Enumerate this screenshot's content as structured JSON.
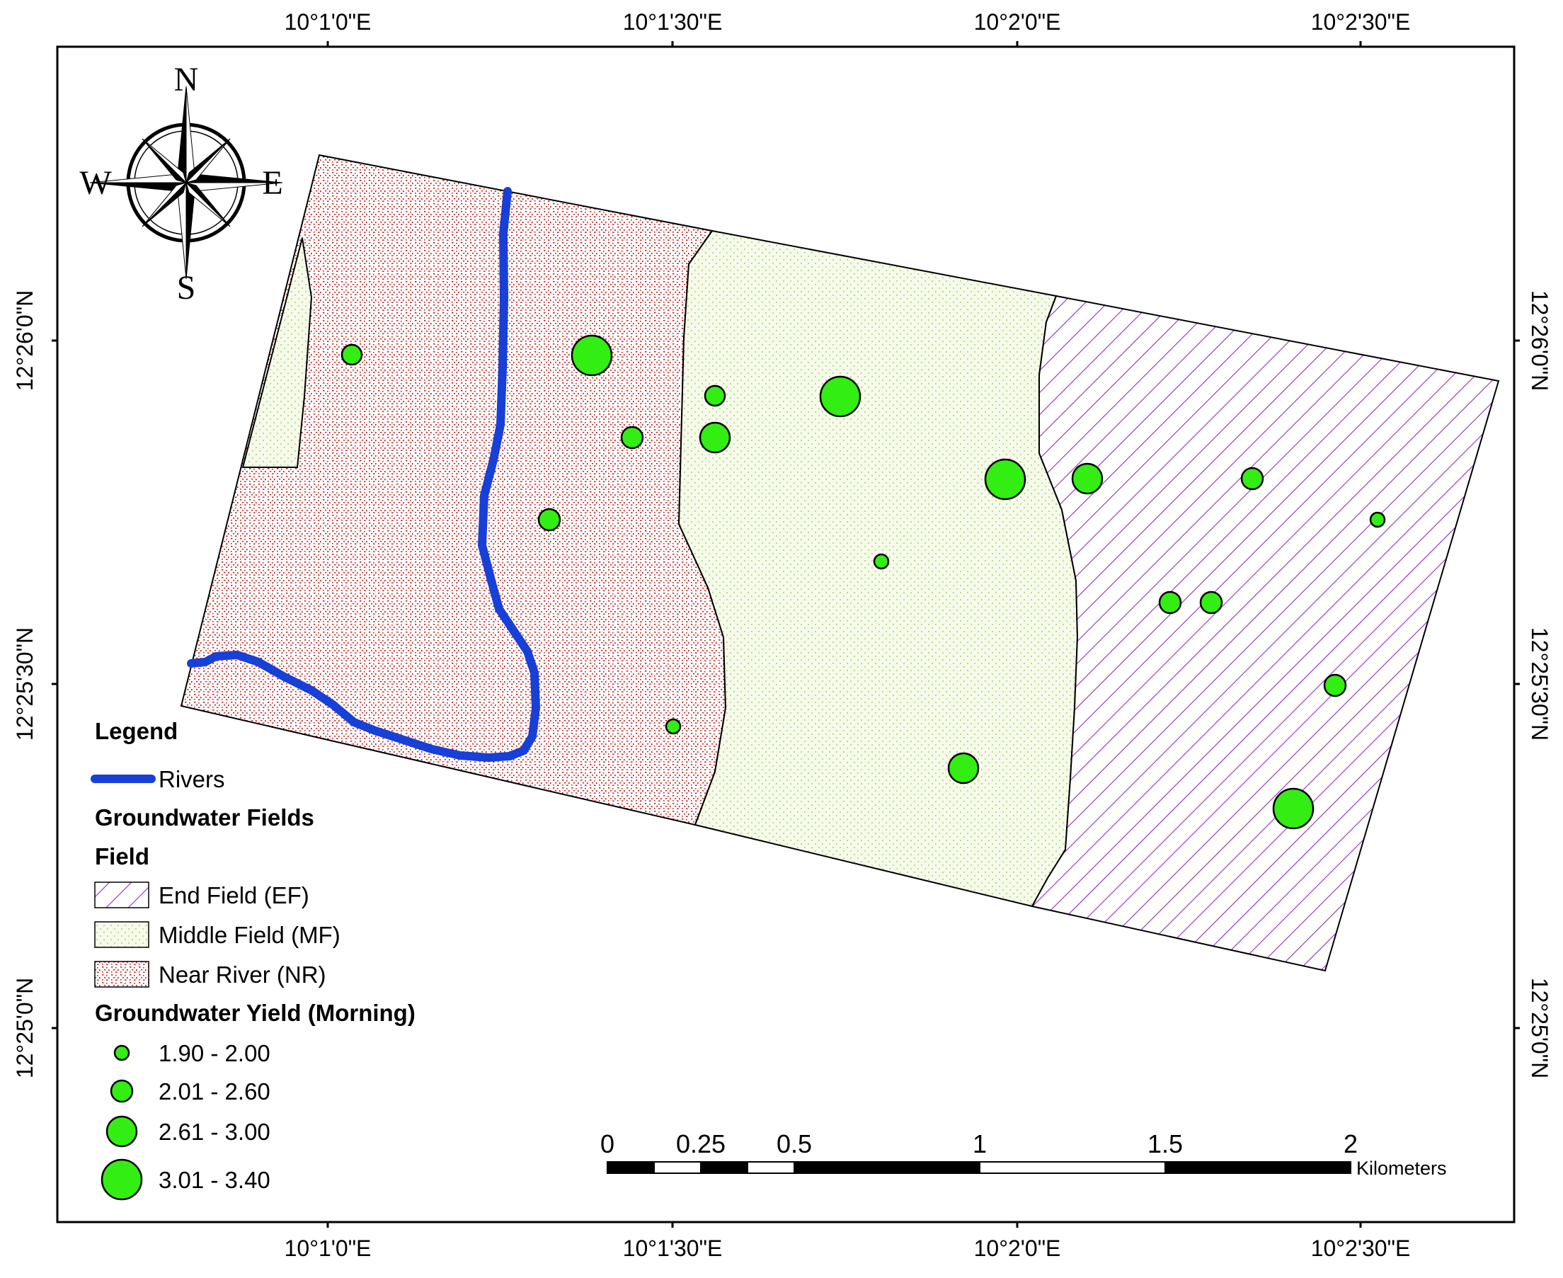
{
  "colors": {
    "river": "#1640d8",
    "well_fill": "#33ee12",
    "ef_hatch": "#8a2fc0",
    "mf_dot": "#b5d88a",
    "mf_bg": "#f6faea",
    "nr_dot": "#c02020",
    "frame": "#000000"
  },
  "graticule": {
    "top_labels": [
      "10°1'0\"E",
      "10°1'30\"E",
      "10°2'0\"E",
      "10°2'30\"E"
    ],
    "bottom_labels": [
      "10°1'0\"E",
      "10°1'30\"E",
      "10°2'0\"E",
      "10°2'30\"E"
    ],
    "left_labels": [
      "12°26'0\"N",
      "12°25'30\"N",
      "12°25'0\"N"
    ],
    "right_labels": [
      "12°26'0\"N",
      "12°25'30\"N",
      "12°25'0\"N"
    ]
  },
  "north_arrow": {
    "icon": "compass-rose-icon",
    "n": "N",
    "s": "S",
    "e": "E",
    "w": "W"
  },
  "legend": {
    "title": "Legend",
    "rivers_label": "Rivers",
    "fields_heading": "Groundwater Fields",
    "field_subheading": "Field",
    "fields": [
      {
        "label": "End Field (EF)",
        "pattern": "ef"
      },
      {
        "label": "Middle Field (MF)",
        "pattern": "mf"
      },
      {
        "label": "Near River (NR)",
        "pattern": "nr"
      }
    ],
    "yield_heading": "Groundwater Yield (Morning)",
    "yield_classes": [
      {
        "label": "1.90 - 2.00",
        "class": 1
      },
      {
        "label": "2.01 - 2.60",
        "class": 2
      },
      {
        "label": "2.61 - 3.00",
        "class": 3
      },
      {
        "label": "3.01 - 3.40",
        "class": 4
      }
    ]
  },
  "scale_bar": {
    "labels": [
      "0",
      "0.25",
      "0.5",
      "1",
      "1.5",
      "2"
    ],
    "unit": "Kilometers"
  }
}
